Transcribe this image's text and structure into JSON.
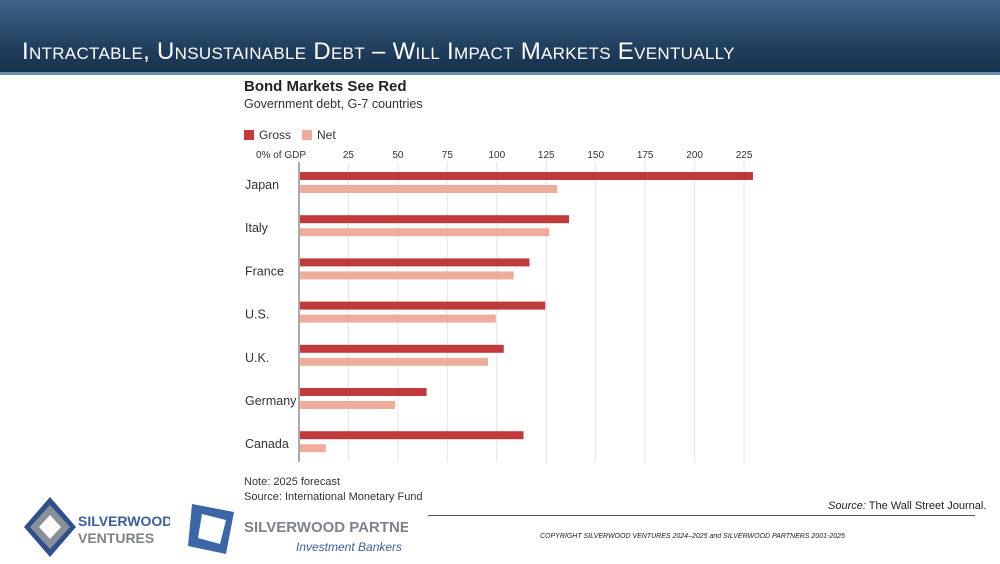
{
  "header": {
    "title": "Intractable, Unsustainable Debt – Will Impact Markets Eventually"
  },
  "chart_data": {
    "type": "bar",
    "orientation": "horizontal",
    "title": "Bond Markets See Red",
    "subtitle": "Government debt, G-7 countries",
    "categories": [
      "Japan",
      "Italy",
      "France",
      "U.S.",
      "U.K.",
      "Germany",
      "Canada"
    ],
    "series": [
      {
        "name": "Gross",
        "color": "#c0393b",
        "values": [
          229,
          136,
          116,
          124,
          103,
          64,
          113
        ]
      },
      {
        "name": "Net",
        "color": "#efab9b",
        "values": [
          130,
          126,
          108,
          99,
          95,
          48,
          13
        ]
      }
    ],
    "xlim": [
      0,
      230
    ],
    "ticks": [
      0,
      25,
      50,
      75,
      100,
      125,
      150,
      175,
      200,
      225
    ],
    "tick_labels": [
      "0% of GDP",
      "25",
      "50",
      "75",
      "100",
      "125",
      "150",
      "175",
      "200",
      "225"
    ],
    "grid": true,
    "legend": "top-left",
    "note": "Note: 2025 forecast",
    "source": "Source: International Monetary Fund"
  },
  "footer": {
    "source_label": "Source:",
    "source_text": " The Wall Street Journal.",
    "copyright": "COPYRIGHT SILVERWOOD VENTURES 2024–2025 and SILVERWOOD PARTNERS 2001-2025",
    "logo1": [
      "Silverwood",
      "Ventures"
    ],
    "logo2": [
      "Silverwood Partners",
      "Investment Bankers"
    ]
  }
}
